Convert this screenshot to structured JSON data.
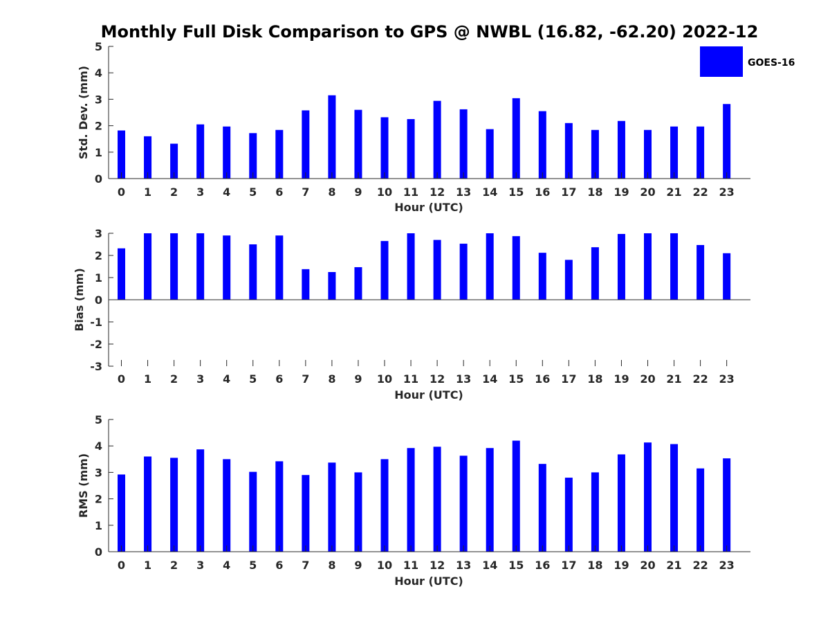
{
  "chart_data": {
    "title": "Monthly Full Disk Comparison to GPS @ NWBL (16.82, -62.20) 2022-12",
    "legend": {
      "label": "GOES-16",
      "color": "#0000ff",
      "placement": "top-right"
    },
    "bar_color": "#0000ff",
    "charts": [
      {
        "type": "bar",
        "xlabel": "Hour (UTC)",
        "ylabel": "Std. Dev. (mm)",
        "ylim": [
          0,
          5
        ],
        "yticks": [
          0,
          1,
          2,
          3,
          4,
          5
        ],
        "categories": [
          "0",
          "1",
          "2",
          "3",
          "4",
          "5",
          "6",
          "7",
          "8",
          "9",
          "10",
          "11",
          "12",
          "13",
          "14",
          "15",
          "16",
          "17",
          "18",
          "19",
          "20",
          "21",
          "22",
          "23"
        ],
        "series": [
          {
            "name": "GOES-16",
            "values": [
              1.82,
              1.6,
              1.32,
              2.05,
              1.97,
              1.72,
              1.84,
              2.58,
              3.15,
              2.6,
              2.32,
              2.25,
              2.94,
              2.62,
              1.87,
              3.04,
              2.55,
              2.1,
              1.84,
              2.18,
              1.84,
              1.97,
              1.97,
              2.82
            ]
          }
        ]
      },
      {
        "type": "bar",
        "xlabel": "Hour (UTC)",
        "ylabel": "Bias (mm)",
        "ylim": [
          -3,
          3
        ],
        "yticks": [
          -3,
          -2,
          -1,
          0,
          1,
          2,
          3
        ],
        "categories": [
          "0",
          "1",
          "2",
          "3",
          "4",
          "5",
          "6",
          "7",
          "8",
          "9",
          "10",
          "11",
          "12",
          "13",
          "14",
          "15",
          "16",
          "17",
          "18",
          "19",
          "20",
          "21",
          "22",
          "23"
        ],
        "series": [
          {
            "name": "GOES-16",
            "values": [
              2.32,
              3.0,
              3.0,
              3.0,
              2.9,
              2.5,
              2.9,
              1.38,
              1.25,
              1.47,
              2.65,
              3.0,
              2.7,
              2.53,
              3.0,
              2.87,
              2.12,
              1.8,
              2.37,
              2.97,
              3.0,
              3.0,
              2.47,
              2.1
            ]
          }
        ]
      },
      {
        "type": "bar",
        "xlabel": "Hour (UTC)",
        "ylabel": "RMS (mm)",
        "ylim": [
          0,
          5
        ],
        "yticks": [
          0,
          1,
          2,
          3,
          4,
          5
        ],
        "categories": [
          "0",
          "1",
          "2",
          "3",
          "4",
          "5",
          "6",
          "7",
          "8",
          "9",
          "10",
          "11",
          "12",
          "13",
          "14",
          "15",
          "16",
          "17",
          "18",
          "19",
          "20",
          "21",
          "22",
          "23"
        ],
        "series": [
          {
            "name": "GOES-16",
            "values": [
              2.92,
              3.6,
              3.55,
              3.87,
              3.5,
              3.02,
              3.42,
              2.9,
              3.37,
              3.0,
              3.5,
              3.92,
              3.97,
              3.63,
              3.92,
              4.2,
              3.32,
              2.8,
              3.0,
              3.68,
              4.13,
              4.07,
              3.15,
              3.53
            ]
          }
        ]
      }
    ]
  }
}
